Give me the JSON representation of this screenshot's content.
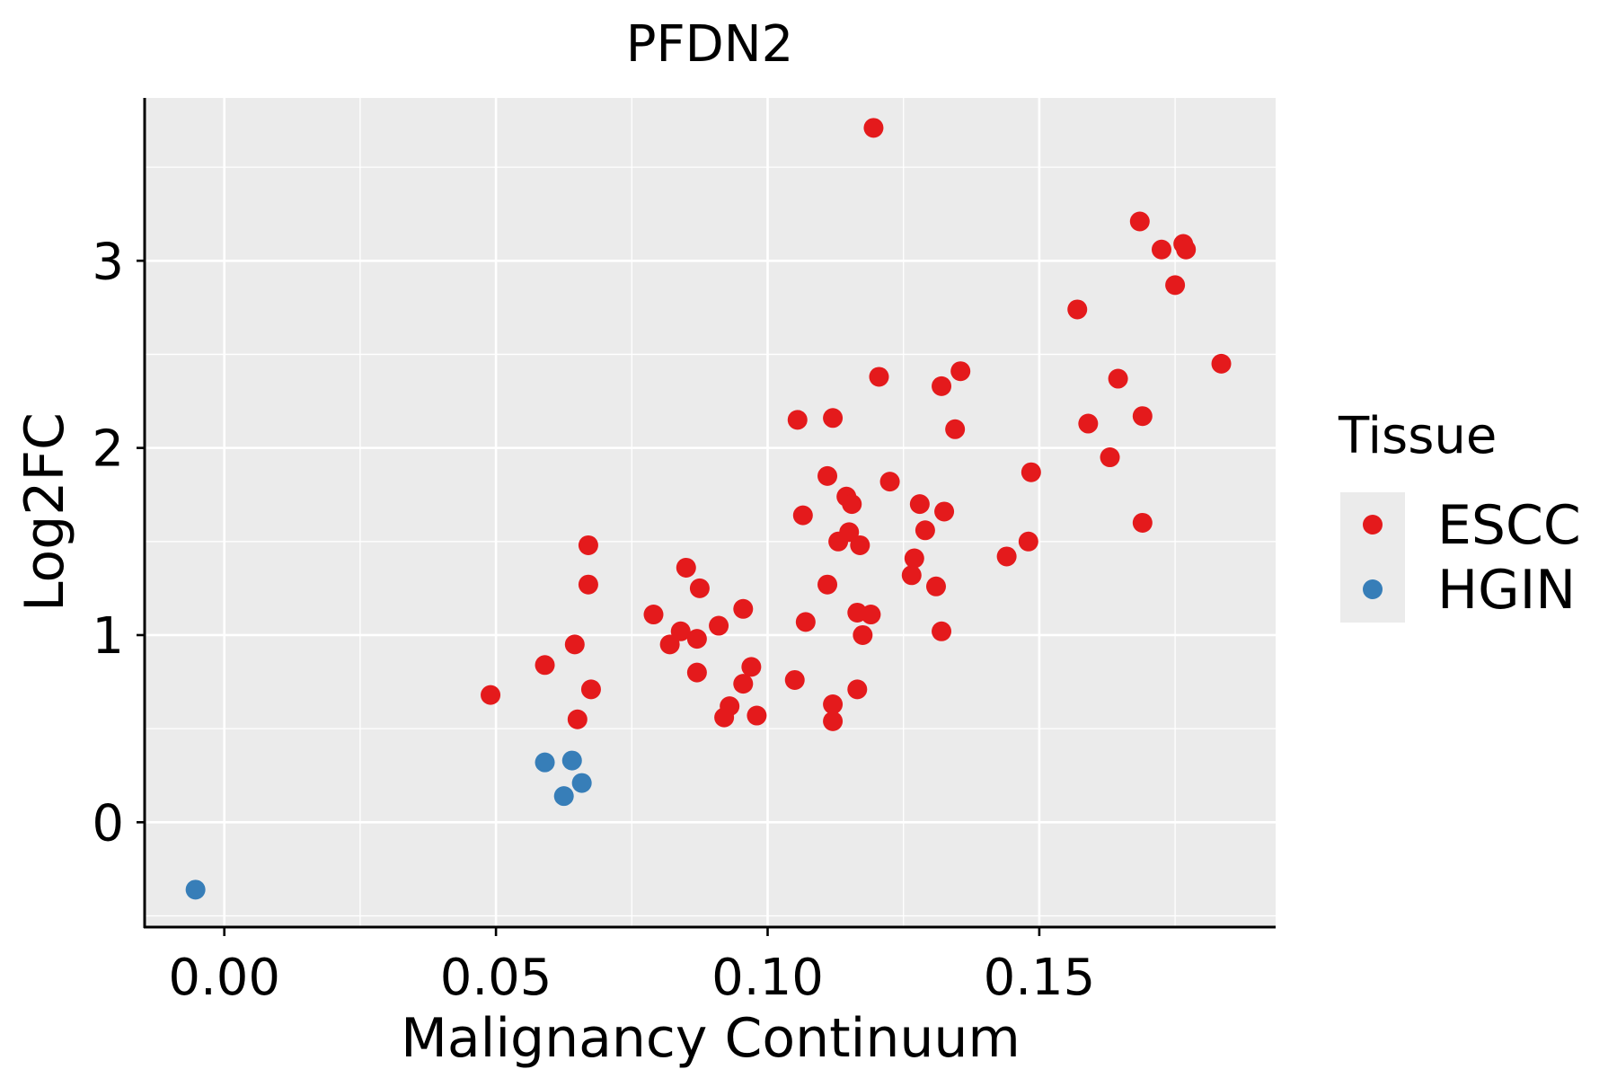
{
  "chart_data": {
    "type": "scatter",
    "title": "PFDN2",
    "xlabel": "Malignancy Continuum",
    "ylabel": "Log2FC",
    "xlim": [
      -0.0145,
      0.1935
    ],
    "ylim": [
      -0.56,
      3.87
    ],
    "x_ticks": [
      0.0,
      0.05,
      0.1,
      0.15
    ],
    "x_tick_labels": [
      "0.00",
      "0.05",
      "0.10",
      "0.15"
    ],
    "y_ticks": [
      0,
      1,
      2,
      3
    ],
    "y_tick_labels": [
      "0",
      "1",
      "2",
      "3"
    ],
    "grid": true,
    "legend": {
      "title": "Tissue",
      "position": "right",
      "entries": [
        {
          "label": "ESCC",
          "color": "#e41a1c"
        },
        {
          "label": "HGIN",
          "color": "#377eb8"
        }
      ]
    },
    "series": [
      {
        "name": "ESCC",
        "color": "#e41a1c",
        "points": [
          [
            0.049,
            0.68
          ],
          [
            0.059,
            0.84
          ],
          [
            0.0645,
            0.95
          ],
          [
            0.065,
            0.55
          ],
          [
            0.067,
            1.27
          ],
          [
            0.067,
            1.48
          ],
          [
            0.0675,
            0.71
          ],
          [
            0.079,
            1.11
          ],
          [
            0.082,
            0.95
          ],
          [
            0.084,
            1.02
          ],
          [
            0.085,
            1.36
          ],
          [
            0.087,
            0.8
          ],
          [
            0.087,
            0.98
          ],
          [
            0.0875,
            1.25
          ],
          [
            0.091,
            1.05
          ],
          [
            0.092,
            0.56
          ],
          [
            0.093,
            0.62
          ],
          [
            0.0955,
            1.14
          ],
          [
            0.0955,
            0.74
          ],
          [
            0.097,
            0.83
          ],
          [
            0.098,
            0.57
          ],
          [
            0.105,
            0.76
          ],
          [
            0.1055,
            2.15
          ],
          [
            0.1065,
            1.64
          ],
          [
            0.107,
            1.07
          ],
          [
            0.111,
            1.27
          ],
          [
            0.111,
            1.85
          ],
          [
            0.112,
            0.63
          ],
          [
            0.112,
            0.54
          ],
          [
            0.112,
            2.16
          ],
          [
            0.113,
            1.5
          ],
          [
            0.1145,
            1.74
          ],
          [
            0.115,
            1.55
          ],
          [
            0.1155,
            1.7
          ],
          [
            0.1165,
            1.12
          ],
          [
            0.1165,
            0.71
          ],
          [
            0.117,
            1.48
          ],
          [
            0.1175,
            1.0
          ],
          [
            0.119,
            1.11
          ],
          [
            0.1195,
            3.71
          ],
          [
            0.1205,
            2.38
          ],
          [
            0.1225,
            1.82
          ],
          [
            0.1265,
            1.32
          ],
          [
            0.127,
            1.41
          ],
          [
            0.128,
            1.7
          ],
          [
            0.129,
            1.56
          ],
          [
            0.131,
            1.26
          ],
          [
            0.132,
            1.02
          ],
          [
            0.132,
            2.33
          ],
          [
            0.1325,
            1.66
          ],
          [
            0.1345,
            2.1
          ],
          [
            0.1355,
            2.41
          ],
          [
            0.144,
            1.42
          ],
          [
            0.148,
            1.5
          ],
          [
            0.1485,
            1.87
          ],
          [
            0.157,
            2.74
          ],
          [
            0.159,
            2.13
          ],
          [
            0.163,
            1.95
          ],
          [
            0.1645,
            2.37
          ],
          [
            0.1685,
            3.21
          ],
          [
            0.169,
            1.6
          ],
          [
            0.169,
            2.17
          ],
          [
            0.1725,
            3.06
          ],
          [
            0.175,
            2.87
          ],
          [
            0.1765,
            3.09
          ],
          [
            0.177,
            3.06
          ],
          [
            0.1835,
            2.45
          ]
        ]
      },
      {
        "name": "HGIN",
        "color": "#377eb8",
        "points": [
          [
            -0.0053,
            -0.36
          ],
          [
            0.059,
            0.32
          ],
          [
            0.0625,
            0.14
          ],
          [
            0.064,
            0.33
          ],
          [
            0.0658,
            0.21
          ]
        ]
      }
    ]
  }
}
